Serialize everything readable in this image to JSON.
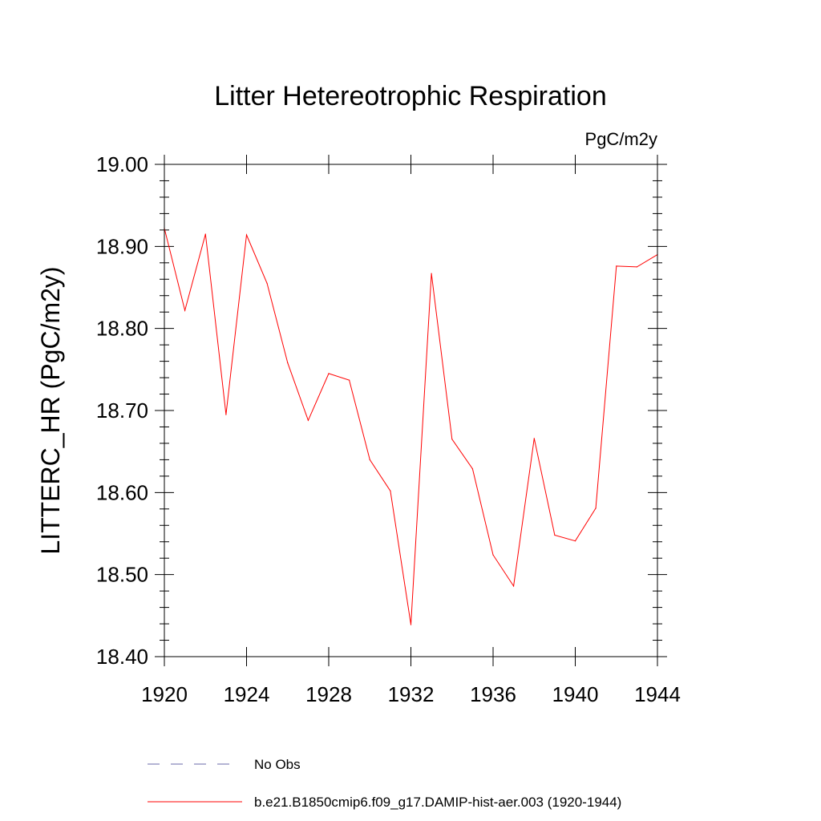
{
  "chart_data": {
    "type": "line",
    "title": "Litter Hetereotrophic Respiration",
    "units_label": "PgC/m2y",
    "ylabel": "LITTERC_HR  (PgC/m2y)",
    "xlabel": "",
    "xlim": [
      1920,
      1944
    ],
    "ylim": [
      18.4,
      19.0
    ],
    "x_ticks": [
      1920,
      1924,
      1928,
      1932,
      1936,
      1940,
      1944
    ],
    "y_ticks": [
      "18.40",
      "18.50",
      "18.60",
      "18.70",
      "18.80",
      "18.90",
      "19.00"
    ],
    "grid": false,
    "legend_position": "bottom",
    "series": [
      {
        "name": "b.e21.B1850cmip6.f09_g17.DAMIP-hist-aer.003 (1920-1944)",
        "color": "#ff0000",
        "style": "solid",
        "x": [
          1920,
          1921,
          1922,
          1923,
          1924,
          1925,
          1926,
          1927,
          1928,
          1929,
          1930,
          1931,
          1932,
          1933,
          1934,
          1935,
          1936,
          1937,
          1938,
          1939,
          1940,
          1941,
          1942,
          1943,
          1944
        ],
        "y": [
          18.922,
          18.822,
          18.915,
          18.695,
          18.914,
          18.855,
          18.758,
          18.688,
          18.745,
          18.737,
          18.64,
          18.602,
          18.439,
          18.867,
          18.665,
          18.629,
          18.524,
          18.486,
          18.666,
          18.548,
          18.541,
          18.581,
          18.876,
          18.875,
          18.89
        ]
      }
    ],
    "legend": [
      {
        "label": "No Obs",
        "color": "#6a6aa8",
        "style": "dashed"
      },
      {
        "label": "b.e21.B1850cmip6.f09_g17.DAMIP-hist-aer.003 (1920-1944)",
        "color": "#ff0000",
        "style": "solid"
      }
    ]
  }
}
